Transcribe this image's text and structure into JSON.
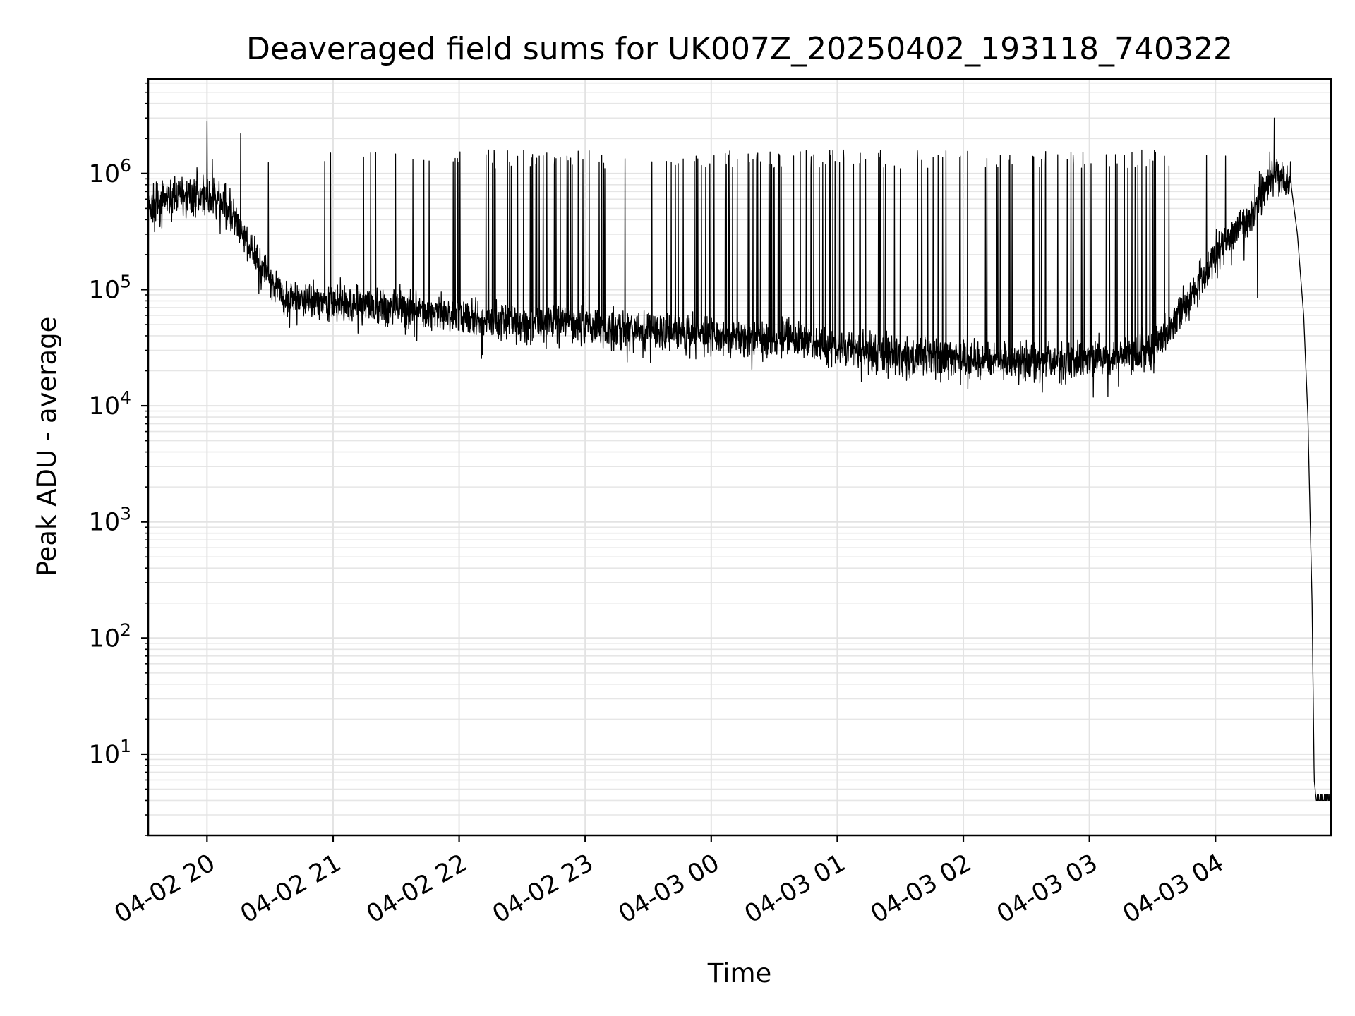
{
  "chart_data": {
    "type": "line",
    "title": "Deaveraged field sums for UK007Z_20250402_193118_740322",
    "xlabel": "Time",
    "ylabel": "Peak ADU - average",
    "yscale": "log",
    "ylim": [
      2,
      6500000
    ],
    "xlim": [
      "2025-04-02 19:32",
      "2025-04-03 04:55"
    ],
    "x_tick_labels": [
      "04-02 20",
      "04-02 21",
      "04-02 22",
      "04-02 23",
      "04-03 00",
      "04-03 01",
      "04-03 02",
      "04-03 03",
      "04-03 04"
    ],
    "x_ticks": [
      "2025-04-02 20:00",
      "2025-04-02 21:00",
      "2025-04-02 22:00",
      "2025-04-02 23:00",
      "2025-04-03 00:00",
      "2025-04-03 01:00",
      "2025-04-03 02:00",
      "2025-04-03 03:00",
      "2025-04-03 04:00"
    ],
    "y_ticks": [
      10,
      100,
      1000,
      10000,
      100000,
      1000000
    ],
    "y_tick_exponents": [
      "1",
      "2",
      "3",
      "4",
      "5",
      "6"
    ],
    "y_tick_base": "10",
    "grid": "both",
    "line_color": "#000000",
    "baseline": {
      "x": [
        "2025-04-02 19:32",
        "2025-04-02 19:45",
        "2025-04-02 20:00",
        "2025-04-02 20:10",
        "2025-04-02 20:20",
        "2025-04-02 20:35",
        "2025-04-02 21:00",
        "2025-04-02 21:30",
        "2025-04-02 22:00",
        "2025-04-02 22:30",
        "2025-04-02 23:00",
        "2025-04-02 23:30",
        "2025-04-03 00:00",
        "2025-04-03 00:30",
        "2025-04-03 01:00",
        "2025-04-03 01:30",
        "2025-04-03 02:00",
        "2025-04-03 02:30",
        "2025-04-03 03:00",
        "2025-04-03 03:30",
        "2025-04-03 03:45",
        "2025-04-03 04:00",
        "2025-04-03 04:15",
        "2025-04-03 04:25",
        "2025-04-03 04:30",
        "2025-04-03 04:36"
      ],
      "y": [
        500000,
        650000,
        650000,
        500000,
        230000,
        90000,
        78000,
        70000,
        58000,
        52000,
        50000,
        44000,
        40000,
        38000,
        32000,
        27000,
        25000,
        24000,
        25000,
        30000,
        70000,
        200000,
        400000,
        900000,
        1000000,
        800000
      ]
    },
    "falloff": {
      "x": [
        "2025-04-03 04:36",
        "2025-04-03 04:39",
        "2025-04-03 04:42",
        "2025-04-03 04:44",
        "2025-04-03 04:46",
        "2025-04-03 04:47",
        "2025-04-03 04:48",
        "2025-04-03 04:55"
      ],
      "y": [
        800000,
        300000,
        60000,
        8000,
        200,
        6,
        4,
        4
      ]
    },
    "noise_band": 0.1,
    "spike_rate_per_hour": [
      {
        "start": "2025-04-02 19:32",
        "end": "2025-04-02 20:30",
        "rate": 3
      },
      {
        "start": "2025-04-02 20:30",
        "end": "2025-04-02 21:35",
        "rate": 8
      },
      {
        "start": "2025-04-02 21:35",
        "end": "2025-04-03 03:40",
        "rate": 26
      },
      {
        "start": "2025-04-03 03:40",
        "end": "2025-04-03 04:36",
        "rate": 5
      }
    ],
    "spike_peak_range": [
      1100000,
      1600000
    ],
    "notable_spikes": [
      {
        "x": "2025-04-02 20:00",
        "y": 2800000
      },
      {
        "x": "2025-04-02 20:16",
        "y": 2200000
      },
      {
        "x": "2025-04-03 04:19",
        "y": 3300000
      },
      {
        "x": "2025-04-03 04:28",
        "y": 3000000
      },
      {
        "x": "2025-04-03 04:27",
        "y": 1800000
      },
      {
        "x": "2025-04-03 04:20",
        "y": 85000
      }
    ]
  }
}
